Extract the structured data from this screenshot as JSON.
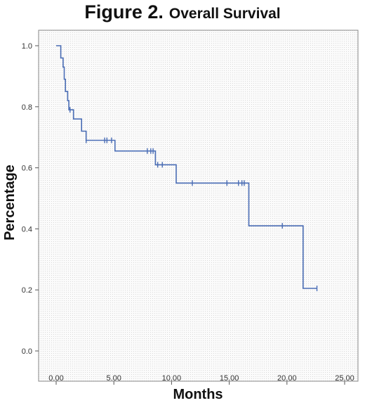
{
  "figure": {
    "number": "Figure 2.",
    "title": "Overall Survival"
  },
  "chart_data": {
    "type": "line",
    "subtype": "kaplan-meier-step",
    "title": "Figure 2. Overall Survival",
    "xlabel": "Months",
    "ylabel": "Percentage",
    "xlim": [
      0,
      25
    ],
    "ylim": [
      0,
      1
    ],
    "xticks": [
      0,
      5,
      10,
      15,
      20,
      25
    ],
    "xtick_labels": [
      "0.00",
      "5.00",
      "10.00",
      "15.00",
      "20.00",
      "25.00"
    ],
    "yticks": [
      0,
      0.2,
      0.4,
      0.6,
      0.8,
      1.0
    ],
    "ytick_labels": [
      "0.0",
      "0.2",
      "0.4",
      "0.6",
      "0.8",
      "1.0"
    ],
    "grid": false,
    "line_color": "#4a6db5",
    "series": [
      {
        "steps": [
          [
            0,
            1.0
          ],
          [
            0.4,
            1.0
          ],
          [
            0.4,
            0.96
          ],
          [
            0.6,
            0.96
          ],
          [
            0.6,
            0.93
          ],
          [
            0.7,
            0.93
          ],
          [
            0.7,
            0.89
          ],
          [
            0.8,
            0.89
          ],
          [
            0.8,
            0.85
          ],
          [
            1.0,
            0.85
          ],
          [
            1.0,
            0.82
          ],
          [
            1.1,
            0.82
          ],
          [
            1.1,
            0.79
          ],
          [
            1.5,
            0.79
          ],
          [
            1.5,
            0.76
          ],
          [
            2.2,
            0.76
          ],
          [
            2.2,
            0.72
          ],
          [
            2.6,
            0.72
          ],
          [
            2.6,
            0.69
          ],
          [
            5.1,
            0.69
          ],
          [
            5.1,
            0.655
          ],
          [
            8.6,
            0.655
          ],
          [
            8.6,
            0.61
          ],
          [
            10.4,
            0.61
          ],
          [
            10.4,
            0.55
          ],
          [
            16.7,
            0.55
          ],
          [
            16.7,
            0.41
          ],
          [
            21.4,
            0.41
          ],
          [
            21.4,
            0.205
          ],
          [
            22.6,
            0.205
          ]
        ],
        "censored": [
          [
            1.2,
            0.79
          ],
          [
            2.6,
            0.69
          ],
          [
            4.2,
            0.69
          ],
          [
            4.4,
            0.69
          ],
          [
            4.8,
            0.69
          ],
          [
            7.9,
            0.655
          ],
          [
            8.2,
            0.655
          ],
          [
            8.4,
            0.655
          ],
          [
            8.8,
            0.61
          ],
          [
            9.2,
            0.61
          ],
          [
            11.8,
            0.55
          ],
          [
            14.8,
            0.55
          ],
          [
            15.8,
            0.55
          ],
          [
            16.1,
            0.55
          ],
          [
            16.3,
            0.55
          ],
          [
            19.6,
            0.41
          ],
          [
            22.6,
            0.205
          ]
        ]
      }
    ]
  }
}
